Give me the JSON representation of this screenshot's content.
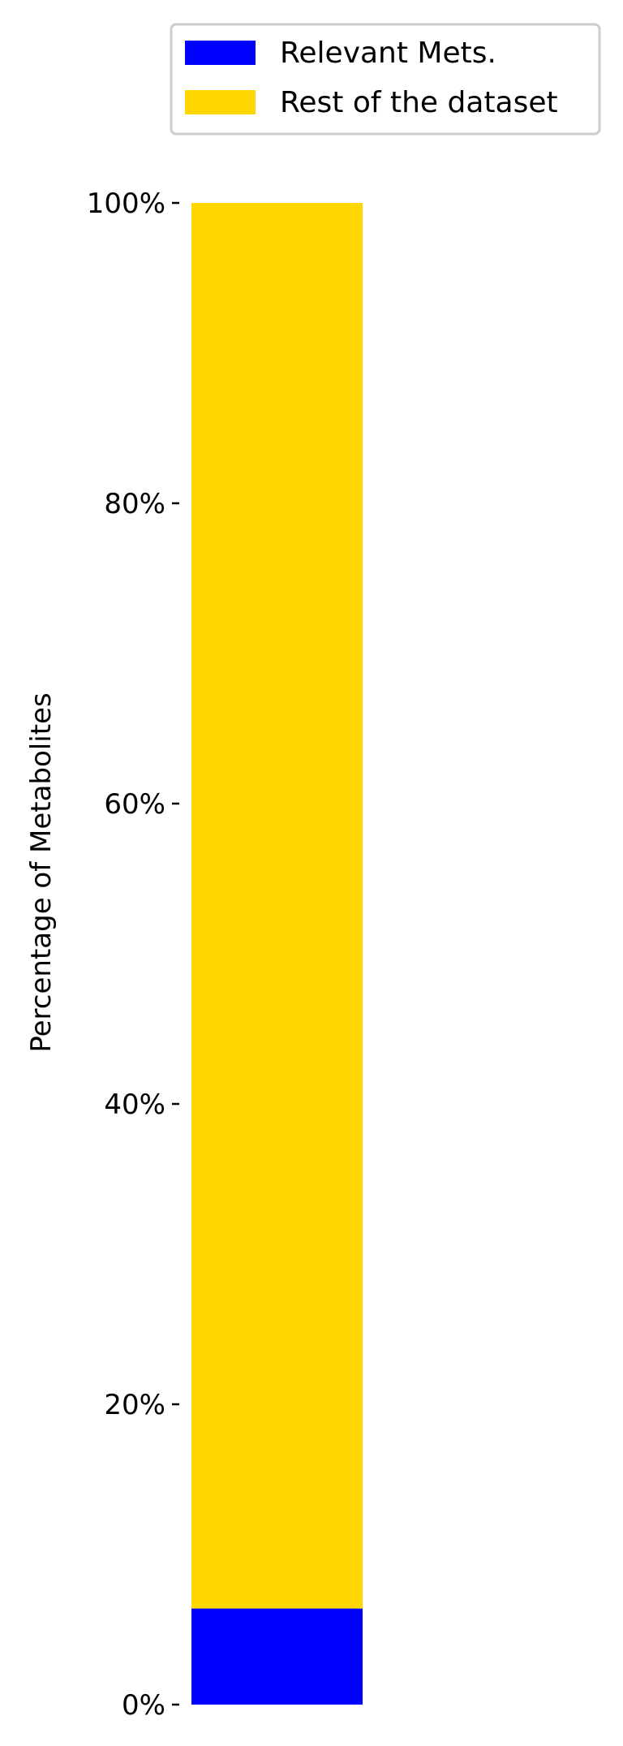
{
  "chart_data": {
    "type": "bar",
    "stacked": true,
    "percent_axis": true,
    "categories": [
      ""
    ],
    "series": [
      {
        "name": "Relevant Mets.",
        "values": [
          6.4
        ],
        "color": "#0000ff"
      },
      {
        "name": "Rest of the dataset",
        "values": [
          93.6
        ],
        "color": "#ffd700"
      }
    ],
    "ylabel": "Percentage of Metabolites",
    "xlabel": "",
    "ylim": [
      0,
      100
    ],
    "yticks": [
      0,
      20,
      40,
      60,
      80,
      100
    ],
    "ytick_labels": [
      "0%",
      "20%",
      "40%",
      "60%",
      "80%",
      "100%"
    ],
    "grid": false,
    "legend_position": "top"
  }
}
